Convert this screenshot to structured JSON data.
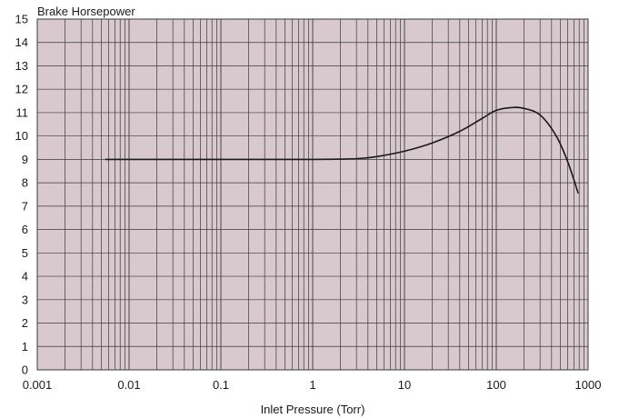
{
  "chart_data": {
    "type": "line",
    "title": "",
    "ylabel": "Brake Horsepower",
    "xlabel": "Inlet Pressure (Torr)",
    "x_scale": "log",
    "xlim": [
      0.001,
      1000
    ],
    "ylim": [
      0,
      15
    ],
    "grid": true,
    "x_tick_values": [
      0.001,
      0.01,
      0.1,
      1,
      10,
      100,
      1000
    ],
    "x_tick_labels": [
      "0.001",
      "0.01",
      "0.1",
      "1",
      "10",
      "100",
      "1000"
    ],
    "y_tick_values": [
      0,
      1,
      2,
      3,
      4,
      5,
      6,
      7,
      8,
      9,
      10,
      11,
      12,
      13,
      14,
      15
    ],
    "y_tick_labels": [
      "0",
      "1",
      "2",
      "3",
      "4",
      "5",
      "6",
      "7",
      "8",
      "9",
      "10",
      "11",
      "12",
      "13",
      "14",
      "15"
    ],
    "series": [
      {
        "x": [
          0.0055,
          0.01,
          0.1,
          1,
          3,
          5,
          10,
          20,
          40,
          70,
          100,
          150,
          200,
          300,
          450,
          600,
          780
        ],
        "y": [
          9.0,
          9.0,
          9.0,
          9.0,
          9.03,
          9.12,
          9.35,
          9.7,
          10.2,
          10.75,
          11.1,
          11.22,
          11.18,
          10.9,
          10.0,
          8.9,
          7.55
        ]
      }
    ],
    "colors": {
      "plot_background": "#d7c9ce",
      "grid": "#3a3a3a",
      "line": "#1a1a1a"
    }
  }
}
